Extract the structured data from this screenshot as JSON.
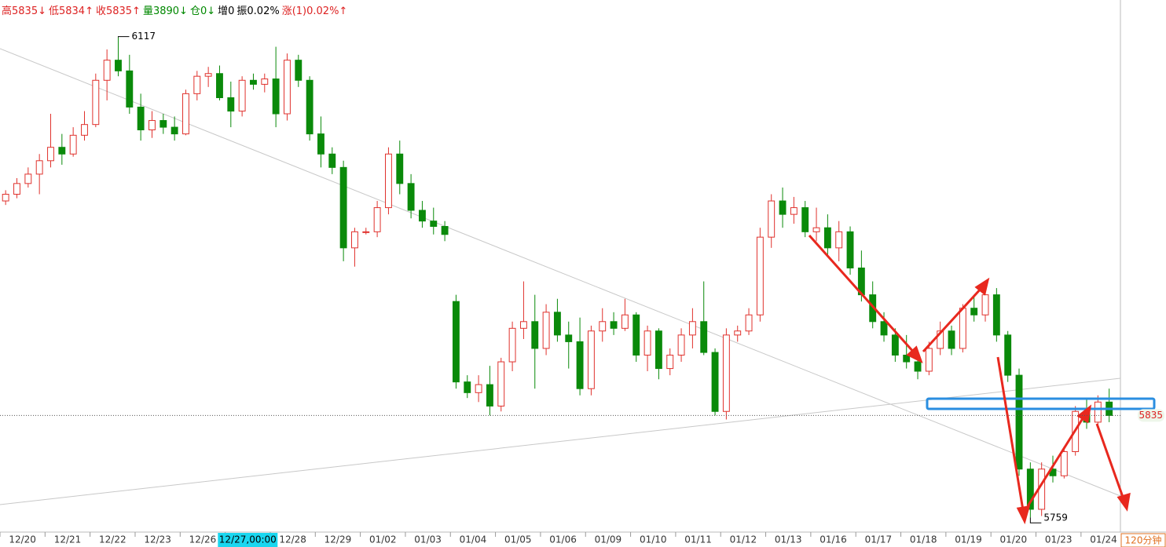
{
  "chart_data": {
    "type": "candlestick",
    "header": [
      {
        "text": "高5835↓",
        "color": "#d22"
      },
      {
        "text": "低5834↑",
        "color": "#d22"
      },
      {
        "text": "收5835↑",
        "color": "#d22"
      },
      {
        "text": "量3890↓",
        "color": "#080"
      },
      {
        "text": "仓0↓",
        "color": "#080"
      },
      {
        "text": "增0",
        "color": "#000"
      },
      {
        "text": "振0.02%",
        "color": "#000"
      },
      {
        "text": "涨(1)0.02%↑",
        "color": "#d22"
      }
    ],
    "period_label": "120分钟",
    "categories": [
      "12/20",
      null,
      null,
      null,
      "12/21",
      null,
      null,
      null,
      "12/22",
      null,
      null,
      null,
      "12/23",
      null,
      null,
      null,
      "12/26",
      null,
      null,
      null,
      "12/27,00:00",
      null,
      null,
      null,
      "12/28",
      null,
      null,
      null,
      "12/29",
      null,
      null,
      null,
      "01/02",
      null,
      null,
      null,
      "01/03",
      null,
      null,
      null,
      "01/04",
      null,
      null,
      null,
      "01/05",
      null,
      null,
      null,
      "01/06",
      null,
      null,
      null,
      "01/09",
      null,
      null,
      null,
      "01/10",
      null,
      null,
      null,
      "01/11",
      null,
      null,
      null,
      "01/12",
      null,
      null,
      null,
      "01/13",
      null,
      null,
      null,
      "01/16",
      null,
      null,
      null,
      "01/17",
      null,
      null,
      null,
      "01/18",
      null,
      null,
      null,
      "01/19",
      null,
      null,
      null,
      "01/20",
      null,
      null,
      null,
      "01/23",
      null,
      null,
      null,
      "01/24",
      null,
      null
    ],
    "cursor_index": 20,
    "open": [
      5995,
      6000,
      6008,
      6015,
      6025,
      6035,
      6030,
      6044,
      6052,
      6085,
      6100,
      6092,
      6065,
      6048,
      6055,
      6050,
      6045,
      6075,
      6088,
      6090,
      6072,
      6062,
      6085,
      6082,
      6086,
      6060,
      6100,
      6085,
      6045,
      6030,
      6020,
      5960,
      5972,
      5972,
      5990,
      6030,
      6008,
      5988,
      5980,
      5976,
      5920,
      5860,
      5852,
      5858,
      5842,
      5875,
      5900,
      5905,
      5885,
      5912,
      5895,
      5890,
      5855,
      5898,
      5905,
      5900,
      5910,
      5880,
      5898,
      5870,
      5880,
      5895,
      5905,
      5882,
      5838,
      5895,
      5898,
      5910,
      5968,
      5995,
      5985,
      5990,
      5972,
      5975,
      5960,
      5972,
      5945,
      5925,
      5905,
      5895,
      5880,
      5875,
      5868,
      5885,
      5898,
      5885,
      5915,
      5910,
      5925,
      5895,
      5865,
      5795,
      5765,
      5795,
      5790,
      5808,
      5838,
      5830,
      5845
    ],
    "high": [
      6003,
      6012,
      6020,
      6030,
      6060,
      6045,
      6050,
      6062,
      6090,
      6108,
      6117,
      6104,
      6075,
      6062,
      6060,
      6058,
      6078,
      6092,
      6095,
      6096,
      6084,
      6088,
      6090,
      6090,
      6110,
      6105,
      6104,
      6088,
      6058,
      6035,
      6025,
      5975,
      5975,
      5995,
      6035,
      6040,
      6015,
      5995,
      5990,
      5980,
      5925,
      5865,
      5865,
      5872,
      5878,
      5905,
      5935,
      5925,
      5918,
      5922,
      5905,
      5908,
      5902,
      5915,
      5912,
      5922,
      5912,
      5902,
      5900,
      5885,
      5900,
      5915,
      5935,
      5885,
      5900,
      5902,
      5915,
      5975,
      6000,
      6005,
      5998,
      5995,
      5990,
      5985,
      5980,
      5976,
      5958,
      5935,
      5912,
      5900,
      5895,
      5880,
      5890,
      5905,
      5902,
      5918,
      5925,
      5930,
      5930,
      5898,
      5870,
      5800,
      5800,
      5805,
      5812,
      5842,
      5848,
      5850,
      5855
    ],
    "low": [
      5992,
      5997,
      6005,
      6000,
      6020,
      6022,
      6028,
      6040,
      6050,
      6070,
      6088,
      6060,
      6040,
      6042,
      6045,
      6040,
      6044,
      6070,
      6080,
      6070,
      6050,
      6058,
      6078,
      6076,
      6050,
      6055,
      6080,
      6040,
      6020,
      6015,
      5950,
      5946,
      5970,
      5968,
      5985,
      6000,
      5982,
      5975,
      5970,
      5965,
      5855,
      5848,
      5845,
      5835,
      5838,
      5868,
      5892,
      5855,
      5880,
      5890,
      5870,
      5850,
      5850,
      5890,
      5895,
      5898,
      5875,
      5868,
      5862,
      5865,
      5875,
      5885,
      5880,
      5835,
      5832,
      5890,
      5895,
      5905,
      5960,
      5975,
      5978,
      5968,
      5965,
      5955,
      5950,
      5940,
      5920,
      5900,
      5890,
      5875,
      5870,
      5862,
      5865,
      5880,
      5880,
      5882,
      5905,
      5905,
      5890,
      5860,
      5790,
      5759,
      5760,
      5785,
      5788,
      5805,
      5825,
      5828,
      5830
    ],
    "close": [
      6000,
      6008,
      6015,
      6025,
      6035,
      6030,
      6044,
      6052,
      6085,
      6100,
      6092,
      6065,
      6048,
      6055,
      6050,
      6045,
      6075,
      6088,
      6090,
      6072,
      6062,
      6085,
      6082,
      6086,
      6060,
      6100,
      6085,
      6045,
      6030,
      6020,
      5960,
      5972,
      5972,
      5990,
      6030,
      6008,
      5988,
      5980,
      5976,
      5970,
      5860,
      5852,
      5858,
      5842,
      5875,
      5900,
      5905,
      5885,
      5912,
      5895,
      5890,
      5855,
      5898,
      5905,
      5900,
      5910,
      5880,
      5898,
      5870,
      5880,
      5895,
      5905,
      5882,
      5838,
      5895,
      5898,
      5910,
      5968,
      5995,
      5985,
      5990,
      5972,
      5975,
      5960,
      5972,
      5945,
      5925,
      5905,
      5895,
      5880,
      5875,
      5868,
      5885,
      5898,
      5885,
      5915,
      5910,
      5925,
      5895,
      5865,
      5795,
      5765,
      5795,
      5790,
      5808,
      5838,
      5830,
      5845,
      5835
    ],
    "up_color": "#e0322d",
    "down_color": "#0a8a0a",
    "ylim": [
      5748,
      6132
    ],
    "max_label": 6117,
    "min_label": 5759,
    "last_price": 5835
  }
}
